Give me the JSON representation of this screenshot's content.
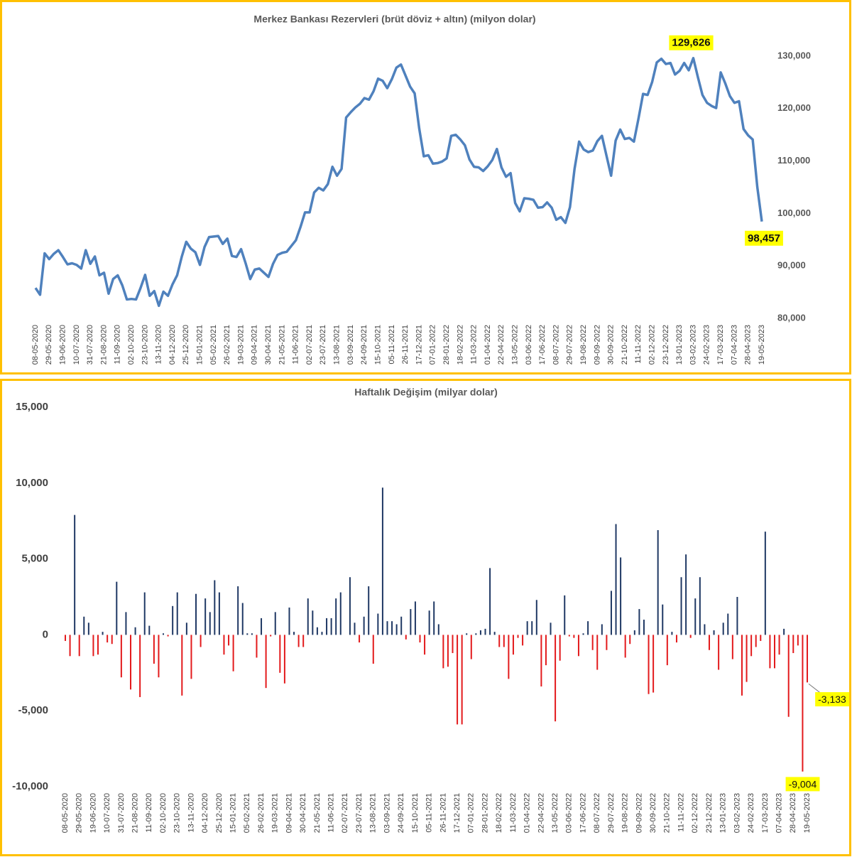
{
  "chart_data": [
    {
      "type": "line",
      "title": "Merkez Bankası Rezervleri (brüt döviz + altın) (milyon dolar)",
      "categories": [
        "08-05-2020",
        null,
        null,
        "29-05-2020",
        null,
        null,
        "19-06-2020",
        null,
        null,
        "10-07-2020",
        null,
        null,
        "31-07-2020",
        null,
        null,
        "21-08-2020",
        null,
        null,
        "11-09-2020",
        null,
        null,
        "02-10-2020",
        null,
        null,
        "23-10-2020",
        null,
        null,
        "13-11-2020",
        null,
        null,
        "04-12-2020",
        null,
        null,
        "25-12-2020",
        null,
        null,
        "15-01-2021",
        null,
        null,
        "05-02-2021",
        null,
        null,
        "26-02-2021",
        null,
        null,
        "19-03-2021",
        null,
        null,
        "09-04-2021",
        null,
        null,
        "30-04-2021",
        null,
        null,
        "21-05-2021",
        null,
        null,
        "11-06-2021",
        null,
        null,
        "02-07-2021",
        null,
        null,
        "23-07-2021",
        null,
        null,
        "13-08-2021",
        null,
        null,
        "03-09-2021",
        null,
        null,
        "24-09-2021",
        null,
        null,
        "15-10-2021",
        null,
        null,
        "05-11-2021",
        null,
        null,
        "26-11-2021",
        null,
        null,
        "17-12-2021",
        null,
        null,
        "07-01-2022",
        null,
        null,
        "28-01-2022",
        null,
        null,
        "18-02-2022",
        null,
        null,
        "11-03-2022",
        null,
        null,
        "01-04-2022",
        null,
        null,
        "22-04-2022",
        null,
        null,
        "13-05-2022",
        null,
        null,
        "03-06-2022",
        null,
        null,
        "17-06-2022",
        null,
        null,
        "08-07-2022",
        null,
        null,
        "29-07-2022",
        null,
        null,
        "19-08-2022",
        null,
        null,
        "09-09-2022",
        null,
        null,
        "30-09-2022",
        null,
        null,
        "21-10-2022",
        null,
        null,
        "11-11-2022",
        null,
        null,
        "02-12-2022",
        null,
        null,
        "23-12-2022",
        null,
        null,
        "13-01-2023",
        null,
        null,
        "03-02-2023",
        null,
        null,
        "24-02-2023",
        null,
        null,
        "17-03-2023",
        null,
        null,
        "07-04-2023",
        null,
        null,
        "28-04-2023",
        null,
        null,
        "19-05-2023"
      ],
      "values": [
        85800,
        84500,
        92400,
        91300,
        92300,
        93000,
        91700,
        90300,
        90500,
        90200,
        89500,
        93000,
        90400,
        91800,
        88200,
        88700,
        84700,
        87500,
        88200,
        86300,
        83600,
        83700,
        83600,
        85800,
        88300,
        84300,
        85200,
        82400,
        85100,
        84300,
        86500,
        88200,
        91700,
        94600,
        93300,
        92600,
        90200,
        93600,
        95500,
        95600,
        95700,
        94200,
        95200,
        91900,
        91700,
        93200,
        90500,
        87500,
        89300,
        89500,
        88700,
        87900,
        90400,
        92100,
        92500,
        92700,
        93800,
        94900,
        97400,
        100200,
        100200,
        104000,
        104900,
        104400,
        105600,
        108900,
        107200,
        108500,
        118300,
        119300,
        120200,
        120900,
        122000,
        121700,
        123300,
        125700,
        125300,
        123900,
        125600,
        127800,
        128400,
        126300,
        124200,
        122900,
        116200,
        110900,
        111100,
        109500,
        109600,
        109900,
        110500,
        114800,
        115000,
        114100,
        113000,
        110300,
        108900,
        108800,
        108100,
        109000,
        110200,
        112300,
        108800,
        107000,
        107700,
        102000,
        100400,
        102900,
        102800,
        102600,
        101100,
        101200,
        102100,
        101100,
        98800,
        99300,
        98200,
        101200,
        108500,
        113700,
        112200,
        111700,
        112000,
        113800,
        114800,
        111000,
        107200,
        113900,
        116000,
        114200,
        114400,
        113700,
        118100,
        122800,
        122600,
        125100,
        128800,
        129500,
        128500,
        128700,
        126500,
        127200,
        128700,
        127300,
        129626,
        126000,
        122600,
        121100,
        120500,
        120100,
        126900,
        124800,
        122400,
        121100,
        121400,
        116100,
        114900,
        114100,
        105100,
        98457
      ],
      "value_labels": [
        null,
        null,
        null,
        null,
        null,
        null,
        null,
        null,
        null,
        null,
        null,
        null,
        null,
        null,
        null,
        null,
        null,
        null,
        null,
        null,
        null,
        null,
        null,
        null,
        null,
        null,
        null,
        null,
        null,
        null,
        null,
        null,
        null,
        null,
        null,
        null,
        null,
        null,
        null,
        null,
        null,
        null,
        null,
        null,
        null,
        null,
        null,
        null,
        null,
        null,
        null,
        null,
        null,
        null,
        null,
        null,
        null,
        null,
        null,
        null,
        null,
        null,
        null,
        null,
        null,
        null,
        null,
        null,
        null,
        null,
        null,
        null,
        null,
        null,
        null,
        null,
        null,
        null,
        null,
        null,
        null,
        null,
        null,
        null,
        null,
        null,
        null,
        null,
        null,
        null,
        null,
        null,
        null,
        null,
        null,
        null,
        null,
        null,
        null,
        null,
        null,
        null,
        null,
        null,
        null,
        null,
        null,
        null,
        null,
        null,
        null,
        null,
        null,
        null,
        null,
        null,
        null,
        null,
        null,
        null,
        null,
        null,
        null,
        null,
        null,
        null,
        null,
        null,
        null,
        null,
        null,
        null,
        null,
        null,
        null,
        null,
        null,
        null,
        null,
        null,
        null,
        null,
        null,
        null,
        "129,626",
        null,
        null,
        null,
        null,
        null,
        null,
        null,
        null,
        null,
        null,
        null,
        null,
        null,
        null,
        "98,457"
      ],
      "color": "#4f81bd",
      "label_background": "#ffff00",
      "y_axis_side": "right",
      "ylim": [
        80000,
        130000
      ],
      "yticks": [
        {
          "value": 80000,
          "label": "80,000"
        },
        {
          "value": 90000,
          "label": "90,000"
        },
        {
          "value": 100000,
          "label": "100,000"
        },
        {
          "value": 110000,
          "label": "110,000"
        },
        {
          "value": 120000,
          "label": "120,000"
        },
        {
          "value": 130000,
          "label": "130,000"
        }
      ],
      "grid": false
    },
    {
      "type": "bar",
      "title": "Haftalık Değişim (milyar dolar)",
      "categories": [
        "08-05-2020",
        null,
        null,
        "29-05-2020",
        null,
        null,
        "19-06-2020",
        null,
        null,
        "10-07-2020",
        null,
        null,
        "31-07-2020",
        null,
        null,
        "21-08-2020",
        null,
        null,
        "11-09-2020",
        null,
        null,
        "02-10-2020",
        null,
        null,
        "23-10-2020",
        null,
        null,
        "13-11-2020",
        null,
        null,
        "04-12-2020",
        null,
        null,
        "25-12-2020",
        null,
        null,
        "15-01-2021",
        null,
        null,
        "05-02-2021",
        null,
        null,
        "26-02-2021",
        null,
        null,
        "19-03-2021",
        null,
        null,
        "09-04-2021",
        null,
        null,
        "30-04-2021",
        null,
        null,
        "21-05-2021",
        null,
        null,
        "11-06-2021",
        null,
        null,
        "02-07-2021",
        null,
        null,
        "23-07-2021",
        null,
        null,
        "13-08-2021",
        null,
        null,
        "03-09-2021",
        null,
        null,
        "24-09-2021",
        null,
        null,
        "15-10-2021",
        null,
        null,
        "05-11-2021",
        null,
        null,
        "26-11-2021",
        null,
        null,
        "17-12-2021",
        null,
        null,
        "07-01-2022",
        null,
        null,
        "28-01-2022",
        null,
        null,
        "18-02-2022",
        null,
        null,
        "11-03-2022",
        null,
        null,
        "01-04-2022",
        null,
        null,
        "22-04-2022",
        null,
        null,
        "13-05-2022",
        null,
        null,
        "03-06-2022",
        null,
        null,
        "17-06-2022",
        null,
        null,
        "08-07-2022",
        null,
        null,
        "29-07-2022",
        null,
        null,
        "19-08-2022",
        null,
        null,
        "09-09-2022",
        null,
        null,
        "30-09-2022",
        null,
        null,
        "21-10-2022",
        null,
        null,
        "11-11-2022",
        null,
        null,
        "02-12-2022",
        null,
        null,
        "23-12-2022",
        null,
        null,
        "13-01-2023",
        null,
        null,
        "03-02-2023",
        null,
        null,
        "24-02-2023",
        null,
        null,
        "17-03-2023",
        null,
        null,
        "07-04-2023",
        null,
        null,
        "28-04-2023",
        null,
        null,
        "19-05-2023"
      ],
      "values": [
        -400,
        -1400,
        7900,
        -1400,
        1200,
        800,
        -1400,
        -1300,
        200,
        -500,
        -600,
        3500,
        -2800,
        1500,
        -3600,
        500,
        -4100,
        2800,
        600,
        -1900,
        -2800,
        100,
        -100,
        1900,
        2800,
        -4000,
        800,
        -2900,
        2700,
        -800,
        2400,
        1500,
        3600,
        2800,
        -1300,
        -700,
        -2400,
        3200,
        2100,
        100,
        100,
        -1500,
        1100,
        -3500,
        -100,
        1500,
        -2500,
        -3200,
        1800,
        200,
        -800,
        -800,
        2400,
        1600,
        500,
        200,
        1100,
        1100,
        2400,
        2800,
        0,
        3800,
        800,
        -500,
        1200,
        3200,
        -1900,
        1400,
        9700,
        900,
        900,
        700,
        1200,
        -300,
        1700,
        2200,
        -500,
        -1300,
        1600,
        2200,
        700,
        -2200,
        -2100,
        -1200,
        -5900,
        -5900,
        100,
        -1600,
        100,
        300,
        400,
        4400,
        200,
        -800,
        -800,
        -2900,
        -1300,
        -200,
        -700,
        900,
        900,
        2300,
        -3400,
        -2000,
        800,
        -5700,
        -1700,
        2600,
        -100,
        -200,
        -1400,
        100,
        900,
        -1000,
        -2300,
        700,
        -1000,
        2900,
        7300,
        5100,
        -1500,
        -600,
        300,
        1700,
        1000,
        -3900,
        -3800,
        6900,
        2000,
        -2000,
        200,
        -500,
        3800,
        5300,
        -200,
        2400,
        3800,
        700,
        -1000,
        300,
        -2300,
        800,
        1400,
        -1600,
        2500,
        -4000,
        -3100,
        -1400,
        -800,
        -400,
        6800,
        -2200,
        -2200,
        -1300,
        400,
        -5400,
        -1200,
        -700,
        -9004,
        -3133
      ],
      "value_labels": [
        null,
        null,
        null,
        null,
        null,
        null,
        null,
        null,
        null,
        null,
        null,
        null,
        null,
        null,
        null,
        null,
        null,
        null,
        null,
        null,
        null,
        null,
        null,
        null,
        null,
        null,
        null,
        null,
        null,
        null,
        null,
        null,
        null,
        null,
        null,
        null,
        null,
        null,
        null,
        null,
        null,
        null,
        null,
        null,
        null,
        null,
        null,
        null,
        null,
        null,
        null,
        null,
        null,
        null,
        null,
        null,
        null,
        null,
        null,
        null,
        null,
        null,
        null,
        null,
        null,
        null,
        null,
        null,
        null,
        null,
        null,
        null,
        null,
        null,
        null,
        null,
        null,
        null,
        null,
        null,
        null,
        null,
        null,
        null,
        null,
        null,
        null,
        null,
        null,
        null,
        null,
        null,
        null,
        null,
        null,
        null,
        null,
        null,
        null,
        null,
        null,
        null,
        null,
        null,
        null,
        null,
        null,
        null,
        null,
        null,
        null,
        null,
        null,
        null,
        null,
        null,
        null,
        null,
        null,
        null,
        null,
        null,
        null,
        null,
        null,
        null,
        null,
        null,
        null,
        null,
        null,
        null,
        null,
        null,
        null,
        null,
        null,
        null,
        null,
        null,
        null,
        null,
        null,
        null,
        null,
        null,
        null,
        null,
        null,
        null,
        null,
        null,
        null,
        null,
        null,
        null,
        null,
        null,
        "-9,004",
        "-3,133"
      ],
      "color": "#1f3864",
      "negative_color": "#e31a1c",
      "label_background": "#ffff00",
      "y_axis_side": "left",
      "ylim": [
        -10000,
        15000
      ],
      "yticks": [
        {
          "value": -10000,
          "label": "-10,000"
        },
        {
          "value": -5000,
          "label": "-5,000"
        },
        0,
        {
          "value": 5000,
          "label": "5,000"
        },
        {
          "value": 10000,
          "label": "10,000"
        },
        {
          "value": 15000,
          "label": "15,000"
        }
      ],
      "grid": false
    }
  ]
}
